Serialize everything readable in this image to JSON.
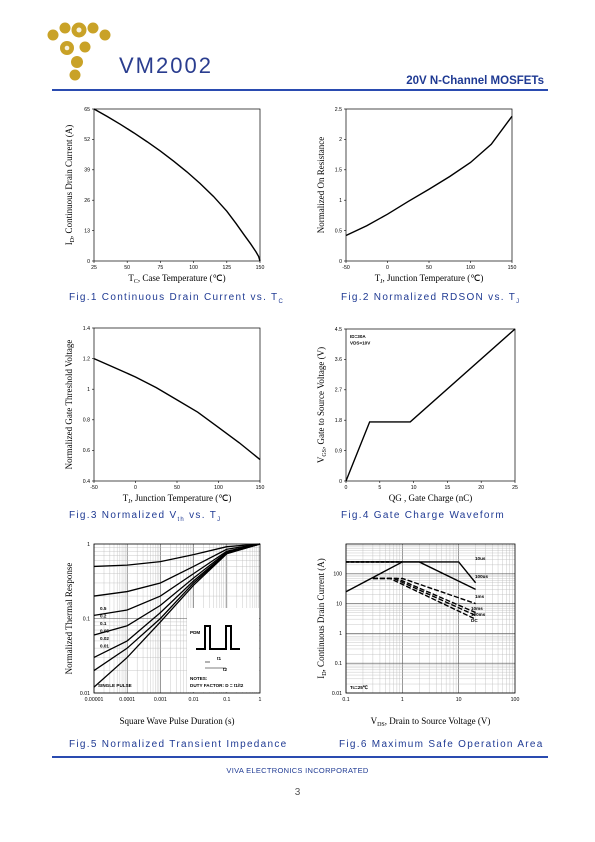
{
  "header": {
    "part_number": "VM2002",
    "headline": "20V N-Channel MOSFETs"
  },
  "footer": {
    "company": "VIVA ELECTRONICS INCORPORATED",
    "page": "3"
  },
  "colors": {
    "brand_blue": "#1f3a93",
    "logo_gold": "#c9a227"
  },
  "chart_data": [
    {
      "id": "fig1",
      "type": "line",
      "caption": "Fig.1   Continuous Drain Current vs. T",
      "caption_sub": "C",
      "xlabel": "T",
      "xlabel_sub": "C",
      "xlabel_rest": ", Case Temperature (℃)",
      "ylabel": "I",
      "ylabel_sub": "D",
      "ylabel_rest": ", Continuous Drain Current (A)",
      "xlim": [
        25,
        150
      ],
      "ylim": [
        0,
        65
      ],
      "xticks": [
        "25",
        "50",
        "75",
        "100",
        "125",
        "150"
      ],
      "yticks": [
        "0",
        "13",
        "26",
        "39",
        "52",
        "65"
      ],
      "grid": false,
      "series": [
        {
          "x": [
            25,
            35,
            45,
            55,
            65,
            75,
            85,
            95,
            105,
            115,
            125,
            132,
            138,
            143,
            147,
            149,
            150
          ],
          "y": [
            65,
            61.8,
            58.4,
            54.8,
            51,
            47,
            42.7,
            38.1,
            33.1,
            27.6,
            21.3,
            16,
            11.2,
            7.3,
            3.9,
            1.9,
            0
          ]
        }
      ]
    },
    {
      "id": "fig2",
      "type": "line",
      "caption": "Fig.2   Normalized RDSON vs. T",
      "caption_sub": "J",
      "xlabel": "T",
      "xlabel_sub": "J",
      "xlabel_rest": ", Junction Temperature (℃)",
      "ylabel": "Normalized On Resistance",
      "xlim": [
        -50,
        150
      ],
      "ylim": [
        0,
        2.5
      ],
      "xticks": [
        "-50",
        "0",
        "50",
        "100",
        "150"
      ],
      "yticks": [
        "0",
        "0.5",
        "1",
        "1.5",
        "2",
        "2.5"
      ],
      "grid": false,
      "series": [
        {
          "x": [
            -50,
            -25,
            0,
            25,
            50,
            75,
            100,
            125,
            150
          ],
          "y": [
            0.42,
            0.58,
            0.77,
            0.98,
            1.18,
            1.39,
            1.62,
            1.92,
            2.38
          ]
        }
      ]
    },
    {
      "id": "fig3",
      "type": "line",
      "caption": "Fig.3   Normalized V",
      "caption_sub": "th",
      "caption_rest": " vs. T",
      "caption_sub2": "J",
      "xlabel": "T",
      "xlabel_sub": "J",
      "xlabel_rest": ", Junction Temperature (℃)",
      "ylabel": "Normalized Gate Threshold Voltage",
      "xlim": [
        -50,
        150
      ],
      "ylim": [
        0.4,
        1.4
      ],
      "xticks": [
        "-50",
        "0",
        "50",
        "100",
        "150"
      ],
      "yticks": [
        "0.4",
        "0.6",
        "0.8",
        "1",
        "1.2",
        "1.4"
      ],
      "grid": false,
      "series": [
        {
          "x": [
            -50,
            -25,
            0,
            25,
            50,
            75,
            100,
            125,
            150
          ],
          "y": [
            1.2,
            1.14,
            1.08,
            1.01,
            0.93,
            0.85,
            0.75,
            0.65,
            0.54
          ]
        }
      ]
    },
    {
      "id": "fig4",
      "type": "line",
      "caption": "Fig.4   Gate Charge Waveform",
      "xlabel": "QG , Gate Charge (nC)",
      "ylabel": "V",
      "ylabel_sub": "GS",
      "ylabel_rest": ", Gate to Source Voltage (V)",
      "xlim": [
        0,
        25
      ],
      "ylim": [
        0,
        4.5
      ],
      "xticks": [
        "0",
        "5",
        "10",
        "15",
        "20",
        "25"
      ],
      "yticks": [
        "0",
        "0.9",
        "1.8",
        "2.7",
        "3.6",
        "4.5"
      ],
      "grid": false,
      "annotations": [
        "ID=30A",
        "VDS=10V"
      ],
      "series": [
        {
          "x": [
            0,
            3.5,
            9.5,
            25
          ],
          "y": [
            0,
            1.75,
            1.75,
            4.5
          ]
        }
      ]
    },
    {
      "id": "fig5",
      "type": "line",
      "caption": "Fig.5   Normalized Transient Impedance",
      "xlabel": "Square Wave Pulse Duration (s)",
      "ylabel": "Normalized Thermal Response",
      "xscale": "log",
      "yscale": "log",
      "xlim": [
        1e-05,
        1
      ],
      "ylim": [
        0.01,
        1
      ],
      "xticks": [
        "0.00001",
        "0.0001",
        "0.001",
        "0.01",
        "0.1",
        "1"
      ],
      "yticks": [
        "0.01",
        "0.1",
        "1"
      ],
      "grid": true,
      "legend": [
        "0.5",
        "0.2",
        "0.1",
        "0.05",
        "0.02",
        "0.01"
      ],
      "annotations": [
        "SINGLE PULSE",
        "NOTES:",
        "DUTY FACTOR: D = t1/t2",
        "PDM",
        "t1",
        "t2"
      ],
      "series": [
        {
          "name": "0.5",
          "x": [
            1e-05,
            0.0001,
            0.001,
            0.01,
            0.1,
            1
          ],
          "y": [
            0.5,
            0.52,
            0.58,
            0.72,
            0.92,
            1
          ]
        },
        {
          "name": "0.2",
          "x": [
            1e-05,
            0.0001,
            0.001,
            0.01,
            0.1,
            1
          ],
          "y": [
            0.2,
            0.23,
            0.3,
            0.5,
            0.85,
            1
          ]
        },
        {
          "name": "0.1",
          "x": [
            1e-05,
            0.0001,
            0.001,
            0.01,
            0.1,
            1
          ],
          "y": [
            0.11,
            0.13,
            0.2,
            0.4,
            0.8,
            1
          ]
        },
        {
          "name": "0.05",
          "x": [
            1e-05,
            0.0001,
            0.001,
            0.01,
            0.1,
            1
          ],
          "y": [
            0.06,
            0.08,
            0.15,
            0.35,
            0.78,
            1
          ]
        },
        {
          "name": "0.02",
          "x": [
            1e-05,
            0.0001,
            0.001,
            0.01,
            0.1,
            1
          ],
          "y": [
            0.03,
            0.05,
            0.12,
            0.32,
            0.76,
            1
          ]
        },
        {
          "name": "0.01",
          "x": [
            1e-05,
            0.0001,
            0.001,
            0.01,
            0.1,
            1
          ],
          "y": [
            0.02,
            0.04,
            0.1,
            0.3,
            0.75,
            1
          ]
        },
        {
          "name": "SINGLE PULSE",
          "x": [
            1e-05,
            0.0001,
            0.001,
            0.01,
            0.1,
            1
          ],
          "y": [
            0.012,
            0.03,
            0.09,
            0.28,
            0.74,
            1
          ]
        }
      ]
    },
    {
      "id": "fig6",
      "type": "line",
      "caption": "Fig.6   Maximum Safe Operation Area",
      "xlabel": "V",
      "xlabel_sub": "DS",
      "xlabel_rest": ", Drain to Source Voltage (V)",
      "ylabel": "I",
      "ylabel_sub": "D",
      "ylabel_rest": ", Continuous Drain Current (A)",
      "xscale": "log",
      "yscale": "log",
      "xlim": [
        0.1,
        100
      ],
      "ylim": [
        0.01,
        1000
      ],
      "xticks": [
        "0.1",
        "1",
        "10",
        "100"
      ],
      "yticks": [
        "0.01",
        "0.1",
        "1",
        "10",
        "100"
      ],
      "grid": true,
      "annotations": [
        "Tc=25℃"
      ],
      "series": [
        {
          "name": "10us",
          "x": [
            0.1,
            1,
            2,
            10,
            20
          ],
          "y": [
            250,
            250,
            250,
            250,
            50
          ]
        },
        {
          "name": "100us",
          "x": [
            0.1,
            2,
            20
          ],
          "y": [
            250,
            250,
            30
          ]
        },
        {
          "name": "1ms",
          "x": [
            0.3,
            1,
            20
          ],
          "y": [
            70,
            70,
            10
          ]
        },
        {
          "name": "10ms",
          "x": [
            0.3,
            0.8,
            20
          ],
          "y": [
            70,
            70,
            5
          ]
        },
        {
          "name": "100ms",
          "x": [
            0.3,
            0.7,
            20
          ],
          "y": [
            70,
            70,
            4
          ]
        },
        {
          "name": "DC",
          "x": [
            0.3,
            0.6,
            20
          ],
          "y": [
            70,
            70,
            3
          ]
        },
        {
          "name": "RDSON limit",
          "x": [
            0.1,
            1
          ],
          "y": [
            25,
            250
          ]
        }
      ]
    }
  ]
}
